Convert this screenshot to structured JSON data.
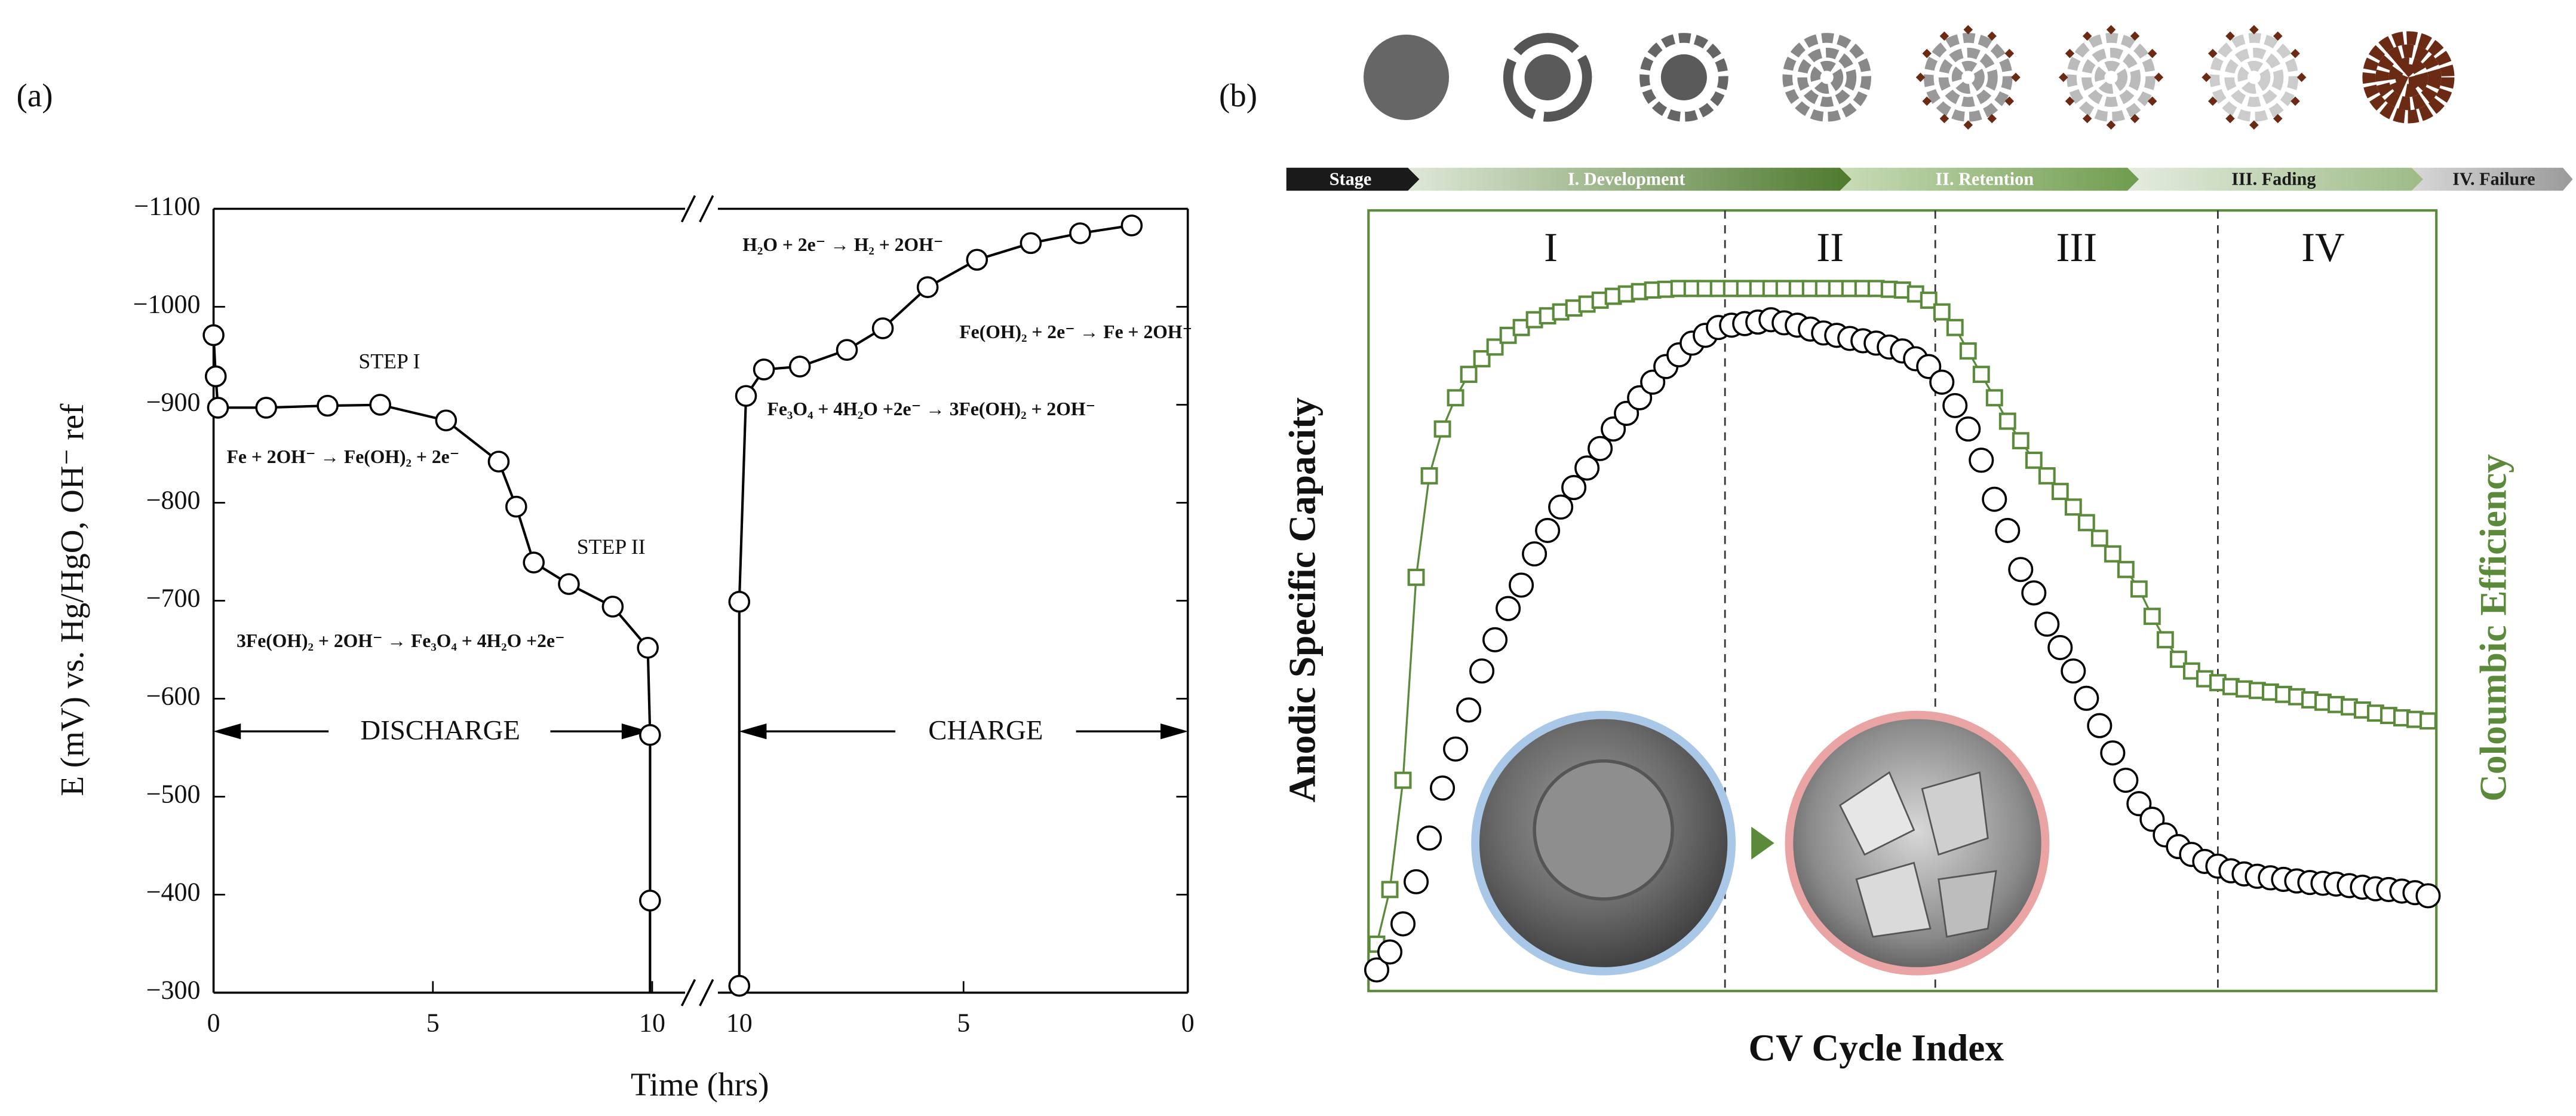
{
  "chart_data": [
    {
      "type": "line",
      "panel_label": "(a)",
      "xlabel": "Time (hrs)",
      "ylabel": "E (mV) vs. Hg/HgO, OH⁻ ref",
      "ylim": [
        -300,
        -1100
      ],
      "yticks": [
        {
          "value": -1100,
          "label": "−1100"
        },
        {
          "value": -1000,
          "label": "−1000"
        },
        {
          "value": -900,
          "label": "−900"
        },
        {
          "value": -800,
          "label": "−800"
        },
        {
          "value": -700,
          "label": "−700"
        },
        {
          "value": -600,
          "label": "−600"
        },
        {
          "value": -500,
          "label": "−500"
        },
        {
          "value": -400,
          "label": "−400"
        },
        {
          "value": -300,
          "label": "−300"
        }
      ],
      "series": [
        {
          "name": "DISCHARGE",
          "color": "#000000",
          "xlim": [
            0,
            10
          ],
          "xticks": [
            0,
            5,
            10
          ],
          "x": [
            0,
            0.05,
            0.1,
            1.2,
            2.6,
            3.8,
            5.3,
            6.5,
            6.9,
            7.3,
            8.1,
            9.1,
            9.9,
            9.95,
            9.95
          ],
          "values": [
            -971,
            -929,
            -897,
            -897,
            -899,
            -900,
            -884,
            -842,
            -796,
            -739,
            -717,
            -694,
            -652,
            -563,
            -394
          ]
        },
        {
          "name": "CHARGE",
          "color": "#000000",
          "xlim": [
            10,
            0
          ],
          "xticks": [
            10,
            5,
            0
          ],
          "x": [
            10,
            10,
            9.85,
            9.45,
            8.65,
            7.6,
            6.8,
            5.8,
            4.7,
            3.5,
            2.4,
            1.25
          ],
          "values": [
            -307,
            -699,
            -909,
            -936,
            -939,
            -956,
            -978,
            -1020,
            -1048,
            -1065,
            -1075,
            -1083
          ]
        }
      ],
      "annotations": [
        "STEP I",
        "Fe + 2OH⁻ → Fe(OH)₂ + 2e⁻",
        "STEP II",
        "3Fe(OH)₂ + 2OH⁻ → Fe₃O₄ + 4H₂O +2e⁻",
        "H₂O + 2e⁻ → H₂ + 2OH⁻",
        "Fe(OH)₂ + 2e⁻ → Fe + 2OH⁻",
        "Fe₃O₄ + 4H₂O +2e⁻ → 3Fe(OH)₂ + 2OH⁻"
      ]
    },
    {
      "type": "scatter",
      "panel_label": "(b)",
      "xlabel": "CV Cycle Index",
      "ylabel": "Anodic Specific Capacity",
      "y2label": "Coloumbic Efficiency",
      "stages": [
        "Stage",
        "I. Development",
        "II. Retention",
        "III. Fading",
        "IV. Failure"
      ],
      "regions": [
        "I",
        "II",
        "III",
        "IV"
      ],
      "region_boundaries": [
        26.5,
        42.5,
        64
      ],
      "ylim": [
        0,
        100
      ],
      "y2lim": [
        0,
        100
      ],
      "series": [
        {
          "color": "#000000",
          "marker": "circle",
          "values": [
            2.7,
            5,
            8.6,
            14,
            19.6,
            26,
            31,
            36,
            41,
            45,
            49,
            52,
            56,
            59,
            62,
            64.5,
            67,
            69.5,
            72,
            74,
            76,
            78,
            80,
            81.5,
            83,
            84,
            85,
            85.3,
            85.5,
            85.7,
            86,
            85.6,
            85.3,
            84.8,
            84.3,
            84,
            83.6,
            83.3,
            83,
            82.5,
            82,
            81,
            80,
            78,
            75,
            72,
            68,
            63,
            59,
            54,
            51,
            47,
            44,
            41,
            37.5,
            34,
            30.5,
            27,
            24,
            22,
            20,
            18.5,
            17.5,
            16.6,
            16,
            15.4,
            15,
            14.7,
            14.5,
            14.3,
            14.1,
            13.9,
            13.8,
            13.7,
            13.5,
            13.3,
            13.1,
            13,
            12.8,
            12.6,
            12.2
          ]
        },
        {
          "color": "#5a8a3a",
          "marker": "square",
          "axis": "y2",
          "values": [
            6,
            13,
            27,
            53,
            66,
            72,
            76,
            79,
            81,
            82.5,
            84,
            85,
            86,
            86.5,
            87,
            87.5,
            88,
            88.5,
            89,
            89.3,
            89.6,
            89.8,
            89.9,
            90,
            90,
            90,
            90,
            90,
            90,
            90,
            90,
            90,
            90,
            90,
            90,
            90,
            90,
            90,
            90,
            89.9,
            89.8,
            89.3,
            88.5,
            87,
            85,
            82,
            79,
            76,
            73,
            70.5,
            68,
            66,
            64,
            62,
            60,
            58,
            56,
            54,
            51.5,
            48,
            45,
            42.5,
            41,
            40,
            39.5,
            39,
            38.7,
            38.5,
            38.3,
            38,
            37.7,
            37.3,
            37,
            36.7,
            36.4,
            36,
            35.6,
            35.3,
            35,
            34.8,
            34.6
          ]
        }
      ]
    }
  ]
}
